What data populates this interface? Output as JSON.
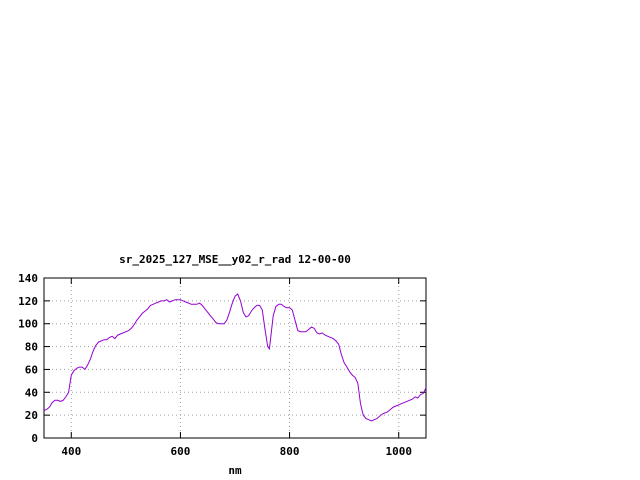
{
  "chart_data": {
    "type": "line",
    "title": "sr_2025_127_MSE__y02_r_rad 12-00-00",
    "xlabel": "nm",
    "ylabel": "",
    "xlim": [
      350,
      1050
    ],
    "ylim": [
      0,
      140
    ],
    "xticks": [
      400,
      600,
      800,
      1000
    ],
    "yticks": [
      0,
      20,
      40,
      60,
      80,
      100,
      120,
      140
    ],
    "grid": true,
    "line_color": "#9400d3",
    "series": [
      {
        "x": [
          350,
          355,
          360,
          365,
          370,
          375,
          380,
          385,
          390,
          395,
          400,
          405,
          410,
          415,
          420,
          425,
          430,
          435,
          440,
          445,
          450,
          455,
          460,
          465,
          470,
          475,
          480,
          485,
          490,
          495,
          500,
          505,
          510,
          515,
          520,
          525,
          530,
          535,
          540,
          545,
          550,
          555,
          560,
          565,
          570,
          575,
          580,
          585,
          590,
          595,
          600,
          605,
          610,
          615,
          620,
          625,
          630,
          635,
          640,
          645,
          650,
          655,
          660,
          665,
          670,
          675,
          680,
          685,
          690,
          695,
          700,
          705,
          710,
          715,
          720,
          725,
          730,
          735,
          740,
          745,
          750,
          755,
          760,
          763,
          766,
          770,
          775,
          780,
          785,
          790,
          795,
          800,
          805,
          810,
          815,
          820,
          825,
          830,
          835,
          840,
          845,
          850,
          855,
          860,
          865,
          870,
          875,
          880,
          885,
          890,
          895,
          900,
          905,
          910,
          915,
          920,
          925,
          930,
          935,
          940,
          945,
          950,
          955,
          960,
          965,
          970,
          975,
          980,
          985,
          990,
          995,
          1000,
          1005,
          1010,
          1015,
          1020,
          1025,
          1030,
          1035,
          1040,
          1045,
          1050
        ],
        "y": [
          24,
          25,
          27,
          31,
          33,
          33,
          32,
          33,
          36,
          40,
          55,
          59,
          61,
          62,
          62,
          60,
          64,
          69,
          76,
          81,
          84,
          85,
          86,
          86,
          88,
          89,
          87,
          90,
          91,
          92,
          93,
          94,
          96,
          99,
          103,
          106,
          109,
          111,
          113,
          116,
          117,
          118,
          119,
          120,
          120,
          121,
          119,
          120,
          121,
          121,
          121,
          120,
          119,
          118,
          117,
          117,
          117,
          118,
          116,
          113,
          110,
          107,
          104,
          101,
          100,
          100,
          100,
          103,
          110,
          118,
          124,
          126,
          120,
          110,
          106,
          107,
          111,
          114,
          116,
          116,
          112,
          95,
          80,
          78,
          90,
          107,
          115,
          117,
          117,
          115,
          114,
          114,
          112,
          103,
          94,
          93,
          93,
          93,
          95,
          97,
          96,
          92,
          91,
          92,
          90,
          89,
          88,
          87,
          85,
          82,
          73,
          66,
          62,
          58,
          55,
          53,
          48,
          30,
          20,
          17,
          16,
          15,
          16,
          17,
          19,
          21,
          22,
          23,
          25,
          27,
          28,
          29,
          30,
          31,
          32,
          33,
          34,
          36,
          35,
          38,
          39,
          44
        ]
      }
    ]
  }
}
